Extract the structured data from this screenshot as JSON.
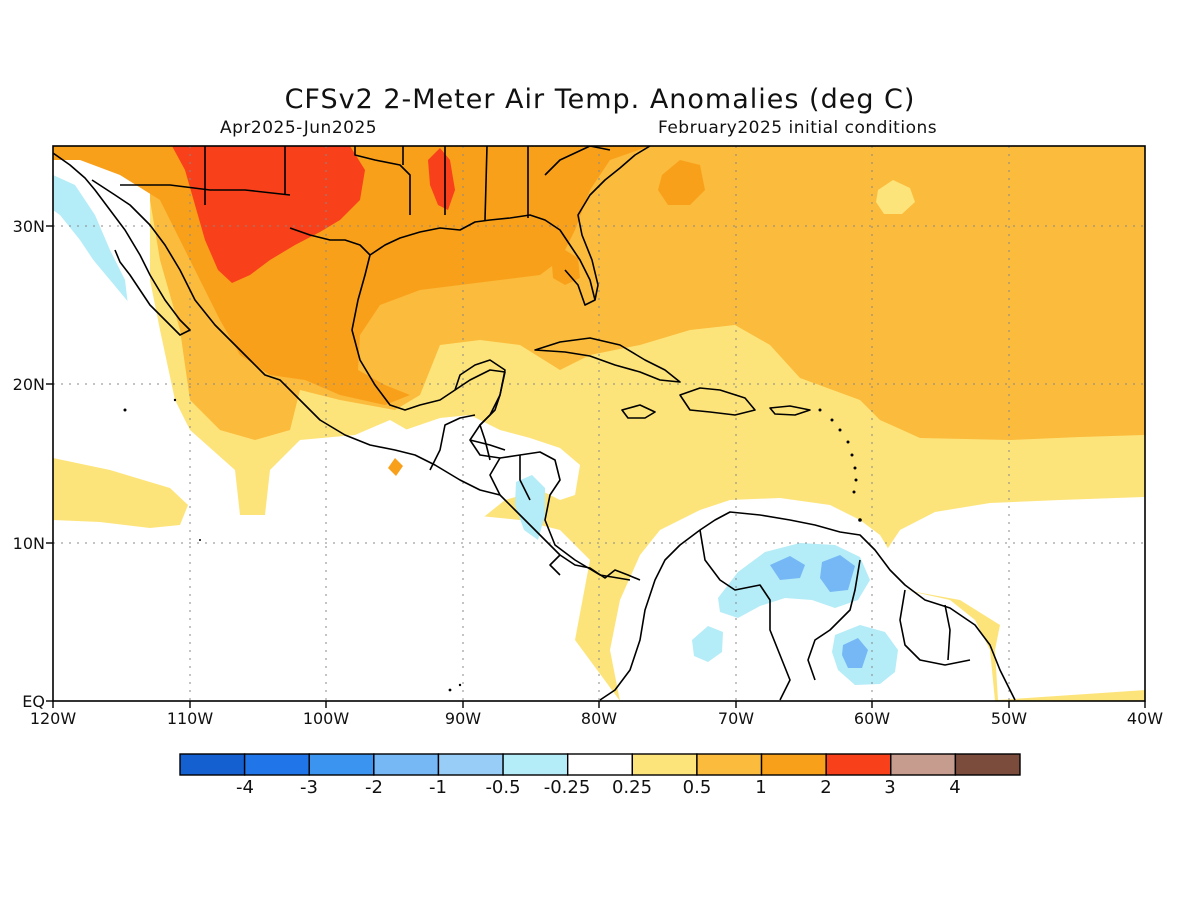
{
  "title": "CFSv2 2-Meter Air Temp. Anomalies (deg C)",
  "subtitle_left": "Apr2025-Jun2025",
  "subtitle_right": "February2025 initial conditions",
  "lat_labels": [
    "30N",
    "20N",
    "10N",
    "EQ"
  ],
  "lon_labels": [
    "120W",
    "110W",
    "100W",
    "90W",
    "80W",
    "70W",
    "60W",
    "50W",
    "40W"
  ],
  "colorbar": {
    "colors": [
      "#1560d0",
      "#2076e8",
      "#3a94f0",
      "#76b8f5",
      "#98cdf7",
      "#b4ecf7",
      "#ffffff",
      "#fde47a",
      "#fbbb3c",
      "#f9a01b",
      "#f8411a",
      "#c59c8e",
      "#7b4b3c"
    ],
    "labels": [
      "-4",
      "-3",
      "-2",
      "-1",
      "-0.5",
      "-0.25",
      "0.25",
      "0.5",
      "1",
      "2",
      "3",
      "4"
    ]
  },
  "legend_colors": {
    "weak_cool": "#b4ecf7",
    "cool": "#76b8f5",
    "neutral": "#ffffff",
    "weak_warm": "#fde47a",
    "warm": "#fbbb3c",
    "warmer": "#f9a01b",
    "hot": "#f8411a"
  }
}
